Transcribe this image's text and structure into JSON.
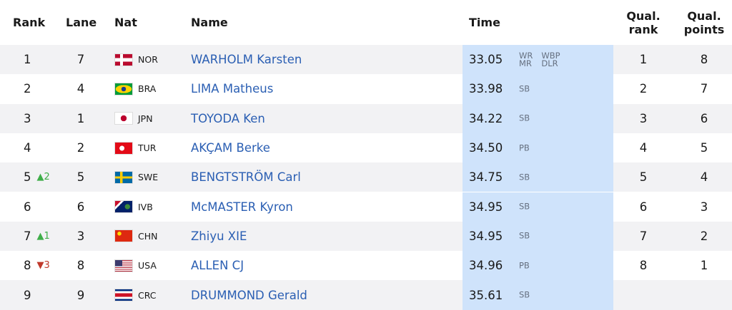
{
  "table": {
    "headers": [
      "Rank",
      "Lane",
      "Nat",
      "Name",
      "Time",
      "Qual. rank",
      "Qual. points"
    ],
    "change_colors": {
      "up": "#3fae49",
      "down": "#c0392b"
    },
    "rows": [
      {
        "rank": 1,
        "lane": 7,
        "nat": "NOR",
        "name": "WARHOLM Karsten",
        "time": "33.05",
        "records": [
          "WR",
          "MR",
          "WBP",
          "DLR"
        ],
        "qual_rank": 1,
        "qual_points": 8
      },
      {
        "rank": 2,
        "lane": 4,
        "nat": "BRA",
        "name": "LIMA Matheus",
        "time": "33.98",
        "records": [
          "SB"
        ],
        "qual_rank": 2,
        "qual_points": 7
      },
      {
        "rank": 3,
        "lane": 1,
        "nat": "JPN",
        "name": "TOYODA Ken",
        "time": "34.22",
        "records": [
          "SB"
        ],
        "qual_rank": 3,
        "qual_points": 6
      },
      {
        "rank": 4,
        "lane": 2,
        "nat": "TUR",
        "name": "AKÇAM Berke",
        "time": "34.50",
        "records": [
          "PB"
        ],
        "qual_rank": 4,
        "qual_points": 5
      },
      {
        "rank": 5,
        "change": "▲2",
        "change_dir": "up",
        "lane": 5,
        "nat": "SWE",
        "name": "BENGTSTRÖM Carl",
        "time": "34.75",
        "records": [
          "SB"
        ],
        "qual_rank": 5,
        "qual_points": 4
      },
      {
        "rank": 6,
        "lane": 6,
        "nat": "IVB",
        "name": "McMASTER Kyron",
        "time": "34.95",
        "records": [
          "SB"
        ],
        "qual_rank": 6,
        "qual_points": 3
      },
      {
        "rank": 7,
        "change": "▲1",
        "change_dir": "up",
        "lane": 3,
        "nat": "CHN",
        "name": "Zhiyu XIE",
        "time": "34.95",
        "records": [
          "SB"
        ],
        "qual_rank": 7,
        "qual_points": 2
      },
      {
        "rank": 8,
        "change": "▼3",
        "change_dir": "down",
        "lane": 8,
        "nat": "USA",
        "name": "ALLEN CJ",
        "time": "34.96",
        "records": [
          "PB"
        ],
        "qual_rank": 8,
        "qual_points": 1
      },
      {
        "rank": 9,
        "lane": 9,
        "nat": "CRC",
        "name": "DRUMMOND Gerald",
        "time": "35.61",
        "records": [
          "SB"
        ],
        "qual_rank": null,
        "qual_points": null
      }
    ]
  }
}
